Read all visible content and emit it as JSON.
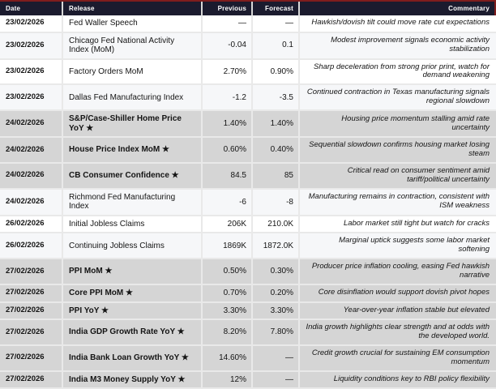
{
  "table": {
    "columns": [
      "Date",
      "Release",
      "Previous",
      "Forecast",
      "Commentary"
    ],
    "rows": [
      {
        "date": "23/02/2026",
        "release": "Fed Waller Speech",
        "previous": "—",
        "forecast": "—",
        "commentary": "Hawkish/dovish tilt could move rate cut expectations",
        "starred": false,
        "highlight": false
      },
      {
        "date": "23/02/2026",
        "release": "Chicago Fed National Activity Index (MoM)",
        "previous": "-0.04",
        "forecast": "0.1",
        "commentary": "Modest improvement signals economic activity stabilization",
        "starred": false,
        "highlight": false
      },
      {
        "date": "23/02/2026",
        "release": "Factory Orders MoM",
        "previous": "2.70%",
        "forecast": "0.90%",
        "commentary": "Sharp deceleration from strong prior print, watch for demand weakening",
        "starred": false,
        "highlight": false
      },
      {
        "date": "23/02/2026",
        "release": "Dallas Fed Manufacturing Index",
        "previous": "-1.2",
        "forecast": "-3.5",
        "commentary": "Continued contraction in Texas manufacturing signals regional slowdown",
        "starred": false,
        "highlight": false
      },
      {
        "date": "24/02/2026",
        "release": "S&P/Case-Shiller Home Price YoY ★",
        "previous": "1.40%",
        "forecast": "1.40%",
        "commentary": "Housing price momentum stalling amid rate uncertainty",
        "starred": true,
        "highlight": true
      },
      {
        "date": "24/02/2026",
        "release": "House Price Index MoM ★",
        "previous": "0.60%",
        "forecast": "0.40%",
        "commentary": "Sequential slowdown confirms housing market losing steam",
        "starred": true,
        "highlight": true
      },
      {
        "date": "24/02/2026",
        "release": "CB Consumer Confidence ★",
        "previous": "84.5",
        "forecast": "85",
        "commentary": "Critical read on consumer sentiment amid tariff/political uncertainty",
        "starred": true,
        "highlight": true
      },
      {
        "date": "24/02/2026",
        "release": "Richmond Fed Manufacturing Index",
        "previous": "-6",
        "forecast": "-8",
        "commentary": "Manufacturing remains in contraction, consistent with ISM weakness",
        "starred": false,
        "highlight": false
      },
      {
        "date": "26/02/2026",
        "release": "Initial Jobless Claims",
        "previous": "206K",
        "forecast": "210.0K",
        "commentary": "Labor market still tight but watch for cracks",
        "starred": false,
        "highlight": false
      },
      {
        "date": "26/02/2026",
        "release": "Continuing Jobless Claims",
        "previous": "1869K",
        "forecast": "1872.0K",
        "commentary": "Marginal uptick suggests some labor market softening",
        "starred": false,
        "highlight": false
      },
      {
        "date": "27/02/2026",
        "release": "PPI MoM ★",
        "previous": "0.50%",
        "forecast": "0.30%",
        "commentary": "Producer price inflation cooling, easing Fed hawkish narrative",
        "starred": true,
        "highlight": true
      },
      {
        "date": "27/02/2026",
        "release": "Core PPI MoM ★",
        "previous": "0.70%",
        "forecast": "0.20%",
        "commentary": "Core disinflation would support dovish pivot hopes",
        "starred": true,
        "highlight": true
      },
      {
        "date": "27/02/2026",
        "release": "PPI YoY ★",
        "previous": "3.30%",
        "forecast": "3.30%",
        "commentary": "Year-over-year inflation stable but elevated",
        "starred": true,
        "highlight": true
      },
      {
        "date": "27/02/2026",
        "release": "India GDP Growth Rate YoY ★",
        "previous": "8.20%",
        "forecast": "7.80%",
        "commentary": "India growth highlights clear strength and at odds with the developed world.",
        "starred": true,
        "highlight": true
      },
      {
        "date": "27/02/2026",
        "release": "India Bank Loan Growth YoY ★",
        "previous": "14.60%",
        "forecast": "—",
        "commentary": "Credit growth crucial for sustaining EM consumption momentum",
        "starred": true,
        "highlight": true
      },
      {
        "date": "27/02/2026",
        "release": "India M3 Money Supply YoY ★",
        "previous": "12%",
        "forecast": "—",
        "commentary": "Liquidity conditions key to RBI policy flexibility",
        "starred": true,
        "highlight": true
      }
    ]
  },
  "colors": {
    "header_bg": "#1b1b2e",
    "header_text": "#ffffff",
    "accent_red": "#7f1d1d",
    "highlight_row": "#d5d5d5",
    "alt_row": "#f6f7f9",
    "separator": "#e9e9e9"
  },
  "icons": {
    "important_release_marker": "star-icon"
  }
}
